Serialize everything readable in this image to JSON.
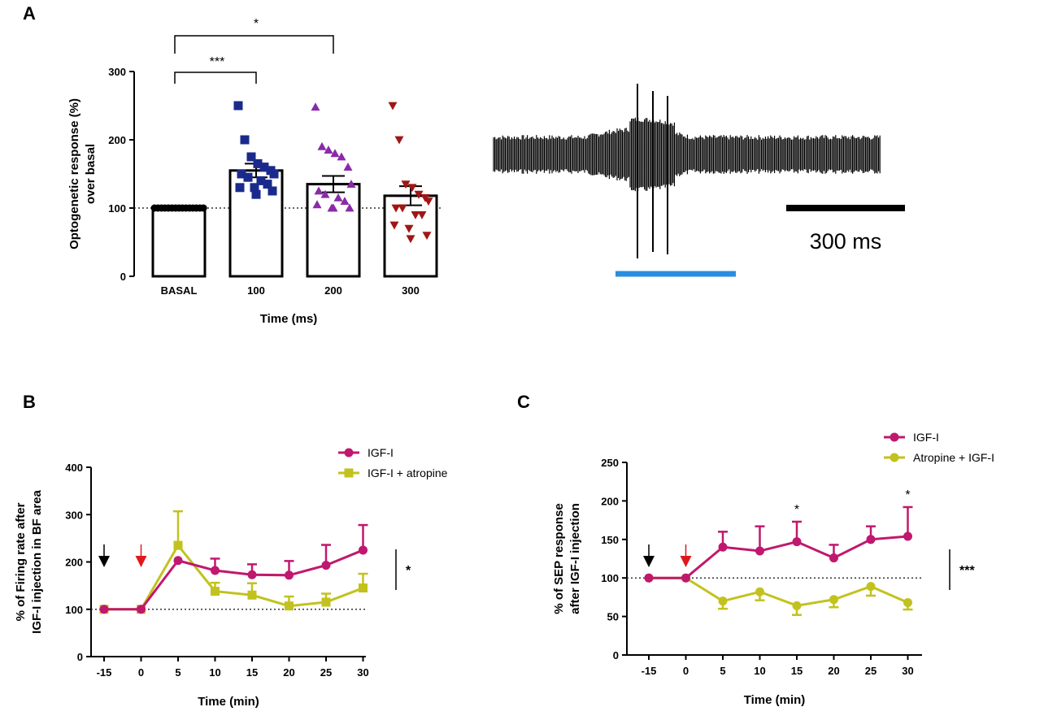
{
  "panel_labels": {
    "a": "A",
    "b": "B",
    "c": "C"
  },
  "scale_bar_label": "300 ms",
  "chart_data": [
    {
      "id": "A",
      "type": "bar",
      "ylabel": "Optogenetic response (%)",
      "ylabel2": "over basal",
      "xlabel": "Time (ms)",
      "categories": [
        "BASAL",
        "100",
        "200",
        "300"
      ],
      "values": [
        100,
        155,
        135,
        118
      ],
      "errors": [
        0,
        10,
        12,
        14
      ],
      "ylim": [
        0,
        300
      ],
      "yticks": [
        "0",
        "100",
        "200",
        "300"
      ],
      "baseline": 100,
      "colors": [
        "#000000",
        "#1a2a8c",
        "#8a2aa8",
        "#a01616"
      ],
      "markers": [
        "circle",
        "square",
        "triangle-up",
        "triangle-down"
      ],
      "points": [
        [
          100,
          100,
          100,
          100,
          100,
          100,
          100,
          100,
          100,
          100,
          100,
          100,
          100,
          100,
          100
        ],
        [
          250,
          200,
          175,
          165,
          160,
          155,
          150,
          150,
          145,
          140,
          135,
          130,
          130,
          125,
          120
        ],
        [
          248,
          190,
          185,
          180,
          175,
          160,
          135,
          125,
          120,
          115,
          110,
          105,
          100,
          100,
          100
        ],
        [
          250,
          200,
          135,
          130,
          120,
          115,
          110,
          100,
          100,
          90,
          90,
          75,
          70,
          60,
          55
        ]
      ],
      "brackets": [
        {
          "from": "BASAL",
          "to": "100",
          "label": "***"
        },
        {
          "from": "BASAL",
          "to": "200",
          "label": "*"
        }
      ]
    },
    {
      "id": "B",
      "type": "line",
      "ylabel": "% of Firing rate after",
      "ylabel2": "IGF-I injection in BF area",
      "xlabel": "Time (min)",
      "x": [
        -15,
        0,
        5,
        10,
        15,
        20,
        25,
        30
      ],
      "xticks": [
        "-15",
        "0",
        "5",
        "10",
        "15",
        "20",
        "25",
        "30"
      ],
      "ylim": [
        0,
        400
      ],
      "yticks": [
        "0",
        "100",
        "200",
        "300",
        "400"
      ],
      "baseline": 100,
      "series": [
        {
          "name": "IGF-I",
          "color": "#c0186e",
          "marker": "circle",
          "values": [
            100,
            100,
            203,
            182,
            173,
            172,
            193,
            225
          ],
          "errors": [
            0,
            0,
            0,
            25,
            22,
            30,
            43,
            53
          ]
        },
        {
          "name": "IGF-I + atropine",
          "color": "#c2c21e",
          "marker": "square",
          "values": [
            100,
            100,
            235,
            138,
            130,
            107,
            115,
            145
          ],
          "errors": [
            0,
            0,
            72,
            18,
            25,
            20,
            18,
            30
          ]
        }
      ],
      "arrows": [
        {
          "x": -15,
          "color": "#000000"
        },
        {
          "x": 0,
          "color": "#e0181b"
        }
      ],
      "significance": "*"
    },
    {
      "id": "C",
      "type": "line",
      "ylabel": "% of SEP response",
      "ylabel2": "after IGF-I injection",
      "xlabel": "Time (min)",
      "x": [
        -15,
        0,
        5,
        10,
        15,
        20,
        25,
        30
      ],
      "xticks": [
        "-15",
        "0",
        "5",
        "10",
        "15",
        "20",
        "25",
        "30"
      ],
      "ylim": [
        0,
        250
      ],
      "yticks": [
        "0",
        "50",
        "100",
        "150",
        "200",
        "250"
      ],
      "baseline": 100,
      "series": [
        {
          "name": "IGF-I",
          "color": "#c0186e",
          "marker": "circle",
          "values": [
            100,
            100,
            140,
            135,
            147,
            126,
            150,
            154
          ],
          "errors": [
            0,
            0,
            20,
            32,
            26,
            17,
            17,
            38
          ]
        },
        {
          "name": "Atropine + IGF-I",
          "color": "#c2c21e",
          "marker": "circle",
          "values": [
            100,
            100,
            70,
            82,
            64,
            72,
            89,
            68
          ],
          "errors": [
            0,
            0,
            10,
            11,
            12,
            10,
            12,
            9
          ]
        }
      ],
      "arrows": [
        {
          "x": -15,
          "color": "#000000"
        },
        {
          "x": 0,
          "color": "#e0181b"
        }
      ],
      "point_labels": [
        {
          "x": 15,
          "label": "*"
        },
        {
          "x": 30,
          "label": "*"
        }
      ],
      "significance": "***"
    }
  ]
}
